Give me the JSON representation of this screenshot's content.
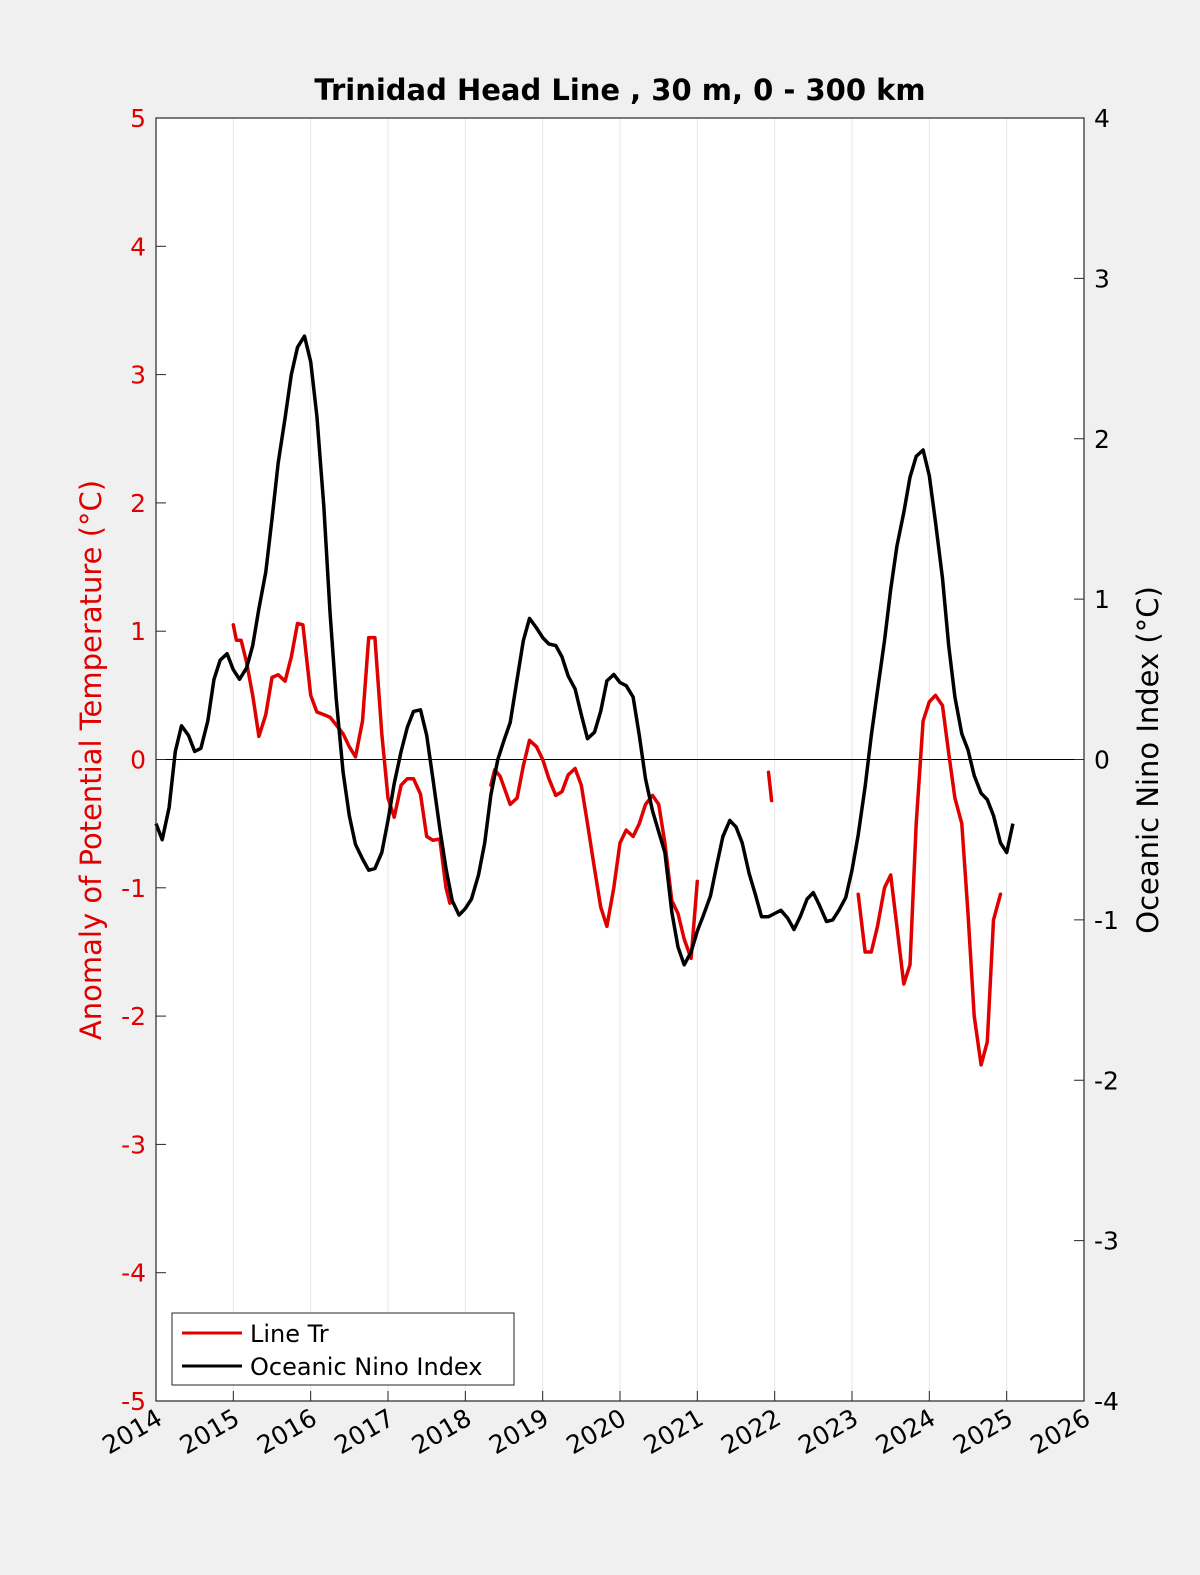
{
  "chart_data": {
    "type": "line",
    "title": "Trinidad Head Line , 30 m, 0 - 300 km",
    "ylabel_left": "Anomaly of Potential Temperature (°C)",
    "ylabel_right": "Oceanic Nino Index (°C)",
    "xlim": [
      2014,
      2026
    ],
    "ylim_left": [
      -5,
      5
    ],
    "ylim_right": [
      -4,
      4
    ],
    "x_ticks": [
      "2014",
      "2015",
      "2016",
      "2017",
      "2018",
      "2019",
      "2020",
      "2021",
      "2022",
      "2023",
      "2024",
      "2025",
      "2026"
    ],
    "y_ticks_left": [
      "-5",
      "-4",
      "-3",
      "-2",
      "-1",
      "0",
      "1",
      "2",
      "3",
      "4",
      "5"
    ],
    "y_ticks_right": [
      "-4",
      "-3",
      "-2",
      "-1",
      "0",
      "1",
      "2",
      "3",
      "4"
    ],
    "grid": "vertical",
    "legend_position": "bottom-left",
    "colors": {
      "line_tr": "#e00000",
      "oni": "#000000",
      "axis_left": "#e00000",
      "axis_right": "#000000"
    },
    "series": [
      {
        "name": "Line Tr",
        "axis": "left",
        "segments": [
          [
            [
              2015.0,
              1.05
            ],
            [
              2015.04,
              0.93
            ],
            [
              2015.1,
              0.93
            ],
            [
              2015.17,
              0.76
            ],
            [
              2015.25,
              0.5
            ],
            [
              2015.33,
              0.18
            ],
            [
              2015.42,
              0.35
            ],
            [
              2015.5,
              0.64
            ],
            [
              2015.58,
              0.66
            ],
            [
              2015.67,
              0.61
            ],
            [
              2015.75,
              0.8
            ],
            [
              2015.83,
              1.06
            ],
            [
              2015.9,
              1.05
            ],
            [
              2016.0,
              0.5
            ],
            [
              2016.08,
              0.37
            ],
            [
              2016.17,
              0.35
            ],
            [
              2016.25,
              0.33
            ],
            [
              2016.33,
              0.27
            ],
            [
              2016.42,
              0.2
            ],
            [
              2016.5,
              0.1
            ],
            [
              2016.58,
              0.02
            ],
            [
              2016.67,
              0.3
            ],
            [
              2016.75,
              0.95
            ],
            [
              2016.83,
              0.95
            ],
            [
              2016.92,
              0.2
            ],
            [
              2017.0,
              -0.3
            ],
            [
              2017.08,
              -0.45
            ],
            [
              2017.17,
              -0.2
            ],
            [
              2017.25,
              -0.15
            ],
            [
              2017.33,
              -0.15
            ],
            [
              2017.42,
              -0.27
            ],
            [
              2017.5,
              -0.6
            ],
            [
              2017.58,
              -0.63
            ],
            [
              2017.67,
              -0.62
            ],
            [
              2017.75,
              -1.0
            ],
            [
              2017.8,
              -1.12
            ]
          ],
          [
            [
              2018.33,
              -0.2
            ],
            [
              2018.38,
              -0.08
            ],
            [
              2018.45,
              -0.13
            ],
            [
              2018.58,
              -0.35
            ],
            [
              2018.67,
              -0.3
            ],
            [
              2018.75,
              -0.05
            ],
            [
              2018.83,
              0.15
            ],
            [
              2018.92,
              0.1
            ],
            [
              2019.0,
              0.0
            ],
            [
              2019.08,
              -0.15
            ],
            [
              2019.17,
              -0.28
            ],
            [
              2019.25,
              -0.25
            ],
            [
              2019.33,
              -0.12
            ],
            [
              2019.42,
              -0.07
            ],
            [
              2019.5,
              -0.2
            ],
            [
              2019.58,
              -0.5
            ],
            [
              2019.67,
              -0.85
            ],
            [
              2019.75,
              -1.15
            ],
            [
              2019.83,
              -1.3
            ],
            [
              2019.92,
              -1.0
            ],
            [
              2020.0,
              -0.65
            ],
            [
              2020.08,
              -0.55
            ],
            [
              2020.17,
              -0.6
            ],
            [
              2020.25,
              -0.5
            ],
            [
              2020.33,
              -0.35
            ],
            [
              2020.42,
              -0.28
            ],
            [
              2020.5,
              -0.35
            ],
            [
              2020.58,
              -0.65
            ],
            [
              2020.67,
              -1.1
            ],
            [
              2020.75,
              -1.2
            ],
            [
              2020.83,
              -1.4
            ],
            [
              2020.92,
              -1.55
            ],
            [
              2021.0,
              -0.95
            ]
          ],
          [
            [
              2021.92,
              -0.1
            ],
            [
              2021.96,
              -0.32
            ]
          ],
          [
            [
              2023.08,
              -1.05
            ],
            [
              2023.17,
              -1.5
            ],
            [
              2023.25,
              -1.5
            ],
            [
              2023.33,
              -1.3
            ],
            [
              2023.42,
              -1.0
            ],
            [
              2023.5,
              -0.9
            ],
            [
              2023.58,
              -1.3
            ],
            [
              2023.67,
              -1.75
            ],
            [
              2023.75,
              -1.6
            ],
            [
              2023.83,
              -0.5
            ],
            [
              2023.92,
              0.3
            ],
            [
              2024.0,
              0.45
            ],
            [
              2024.08,
              0.5
            ],
            [
              2024.17,
              0.42
            ],
            [
              2024.25,
              0.05
            ],
            [
              2024.33,
              -0.3
            ],
            [
              2024.42,
              -0.5
            ],
            [
              2024.5,
              -1.2
            ],
            [
              2024.58,
              -2.0
            ],
            [
              2024.67,
              -2.38
            ],
            [
              2024.75,
              -2.2
            ],
            [
              2024.83,
              -1.25
            ],
            [
              2024.92,
              -1.05
            ]
          ]
        ]
      },
      {
        "name": "Oceanic Nino Index",
        "axis": "right",
        "points": [
          [
            2014.0,
            -0.4
          ],
          [
            2014.08,
            -0.5
          ],
          [
            2014.17,
            -0.3
          ],
          [
            2014.25,
            0.05
          ],
          [
            2014.33,
            0.21
          ],
          [
            2014.42,
            0.15
          ],
          [
            2014.5,
            0.05
          ],
          [
            2014.58,
            0.07
          ],
          [
            2014.67,
            0.24
          ],
          [
            2014.75,
            0.5
          ],
          [
            2014.83,
            0.62
          ],
          [
            2014.92,
            0.66
          ],
          [
            2015.0,
            0.56
          ],
          [
            2015.08,
            0.5
          ],
          [
            2015.17,
            0.57
          ],
          [
            2015.25,
            0.71
          ],
          [
            2015.33,
            0.94
          ],
          [
            2015.42,
            1.17
          ],
          [
            2015.5,
            1.5
          ],
          [
            2015.58,
            1.85
          ],
          [
            2015.67,
            2.13
          ],
          [
            2015.75,
            2.4
          ],
          [
            2015.83,
            2.57
          ],
          [
            2015.92,
            2.64
          ],
          [
            2016.0,
            2.48
          ],
          [
            2016.08,
            2.14
          ],
          [
            2016.17,
            1.58
          ],
          [
            2016.25,
            0.92
          ],
          [
            2016.33,
            0.38
          ],
          [
            2016.42,
            -0.08
          ],
          [
            2016.5,
            -0.35
          ],
          [
            2016.58,
            -0.53
          ],
          [
            2016.67,
            -0.62
          ],
          [
            2016.75,
            -0.69
          ],
          [
            2016.83,
            -0.68
          ],
          [
            2016.92,
            -0.58
          ],
          [
            2017.0,
            -0.38
          ],
          [
            2017.08,
            -0.15
          ],
          [
            2017.17,
            0.05
          ],
          [
            2017.25,
            0.2
          ],
          [
            2017.33,
            0.3
          ],
          [
            2017.42,
            0.31
          ],
          [
            2017.5,
            0.15
          ],
          [
            2017.58,
            -0.12
          ],
          [
            2017.67,
            -0.43
          ],
          [
            2017.75,
            -0.68
          ],
          [
            2017.83,
            -0.88
          ],
          [
            2017.92,
            -0.97
          ],
          [
            2018.0,
            -0.93
          ],
          [
            2018.08,
            -0.87
          ],
          [
            2018.17,
            -0.72
          ],
          [
            2018.25,
            -0.52
          ],
          [
            2018.33,
            -0.22
          ],
          [
            2018.42,
            0.0
          ],
          [
            2018.5,
            0.12
          ],
          [
            2018.58,
            0.23
          ],
          [
            2018.67,
            0.5
          ],
          [
            2018.75,
            0.74
          ],
          [
            2018.83,
            0.88
          ],
          [
            2018.92,
            0.82
          ],
          [
            2019.0,
            0.76
          ],
          [
            2019.08,
            0.72
          ],
          [
            2019.17,
            0.71
          ],
          [
            2019.25,
            0.64
          ],
          [
            2019.33,
            0.52
          ],
          [
            2019.42,
            0.44
          ],
          [
            2019.5,
            0.28
          ],
          [
            2019.58,
            0.13
          ],
          [
            2019.67,
            0.17
          ],
          [
            2019.75,
            0.3
          ],
          [
            2019.83,
            0.49
          ],
          [
            2019.92,
            0.53
          ],
          [
            2020.0,
            0.48
          ],
          [
            2020.08,
            0.46
          ],
          [
            2020.17,
            0.39
          ],
          [
            2020.25,
            0.15
          ],
          [
            2020.33,
            -0.12
          ],
          [
            2020.42,
            -0.32
          ],
          [
            2020.5,
            -0.45
          ],
          [
            2020.58,
            -0.58
          ],
          [
            2020.67,
            -0.95
          ],
          [
            2020.75,
            -1.17
          ],
          [
            2020.83,
            -1.28
          ],
          [
            2020.92,
            -1.2
          ],
          [
            2021.0,
            -1.07
          ],
          [
            2021.08,
            -0.97
          ],
          [
            2021.17,
            -0.85
          ],
          [
            2021.25,
            -0.66
          ],
          [
            2021.33,
            -0.48
          ],
          [
            2021.42,
            -0.38
          ],
          [
            2021.5,
            -0.42
          ],
          [
            2021.58,
            -0.52
          ],
          [
            2021.67,
            -0.71
          ],
          [
            2021.75,
            -0.84
          ],
          [
            2021.83,
            -0.98
          ],
          [
            2021.92,
            -0.98
          ],
          [
            2022.0,
            -0.96
          ],
          [
            2022.08,
            -0.94
          ],
          [
            2022.17,
            -0.99
          ],
          [
            2022.25,
            -1.06
          ],
          [
            2022.33,
            -0.98
          ],
          [
            2022.42,
            -0.87
          ],
          [
            2022.5,
            -0.83
          ],
          [
            2022.58,
            -0.91
          ],
          [
            2022.67,
            -1.01
          ],
          [
            2022.75,
            -1.0
          ],
          [
            2022.83,
            -0.94
          ],
          [
            2022.92,
            -0.86
          ],
          [
            2023.0,
            -0.69
          ],
          [
            2023.08,
            -0.47
          ],
          [
            2023.17,
            -0.17
          ],
          [
            2023.25,
            0.15
          ],
          [
            2023.33,
            0.43
          ],
          [
            2023.42,
            0.74
          ],
          [
            2023.5,
            1.06
          ],
          [
            2023.58,
            1.33
          ],
          [
            2023.67,
            1.54
          ],
          [
            2023.75,
            1.76
          ],
          [
            2023.83,
            1.89
          ],
          [
            2023.92,
            1.93
          ],
          [
            2024.0,
            1.77
          ],
          [
            2024.08,
            1.48
          ],
          [
            2024.17,
            1.13
          ],
          [
            2024.25,
            0.71
          ],
          [
            2024.33,
            0.39
          ],
          [
            2024.42,
            0.16
          ],
          [
            2024.5,
            0.06
          ],
          [
            2024.58,
            -0.1
          ],
          [
            2024.67,
            -0.21
          ],
          [
            2024.75,
            -0.25
          ],
          [
            2024.83,
            -0.35
          ],
          [
            2024.92,
            -0.52
          ],
          [
            2025.0,
            -0.58
          ],
          [
            2025.08,
            -0.4
          ]
        ]
      }
    ]
  }
}
